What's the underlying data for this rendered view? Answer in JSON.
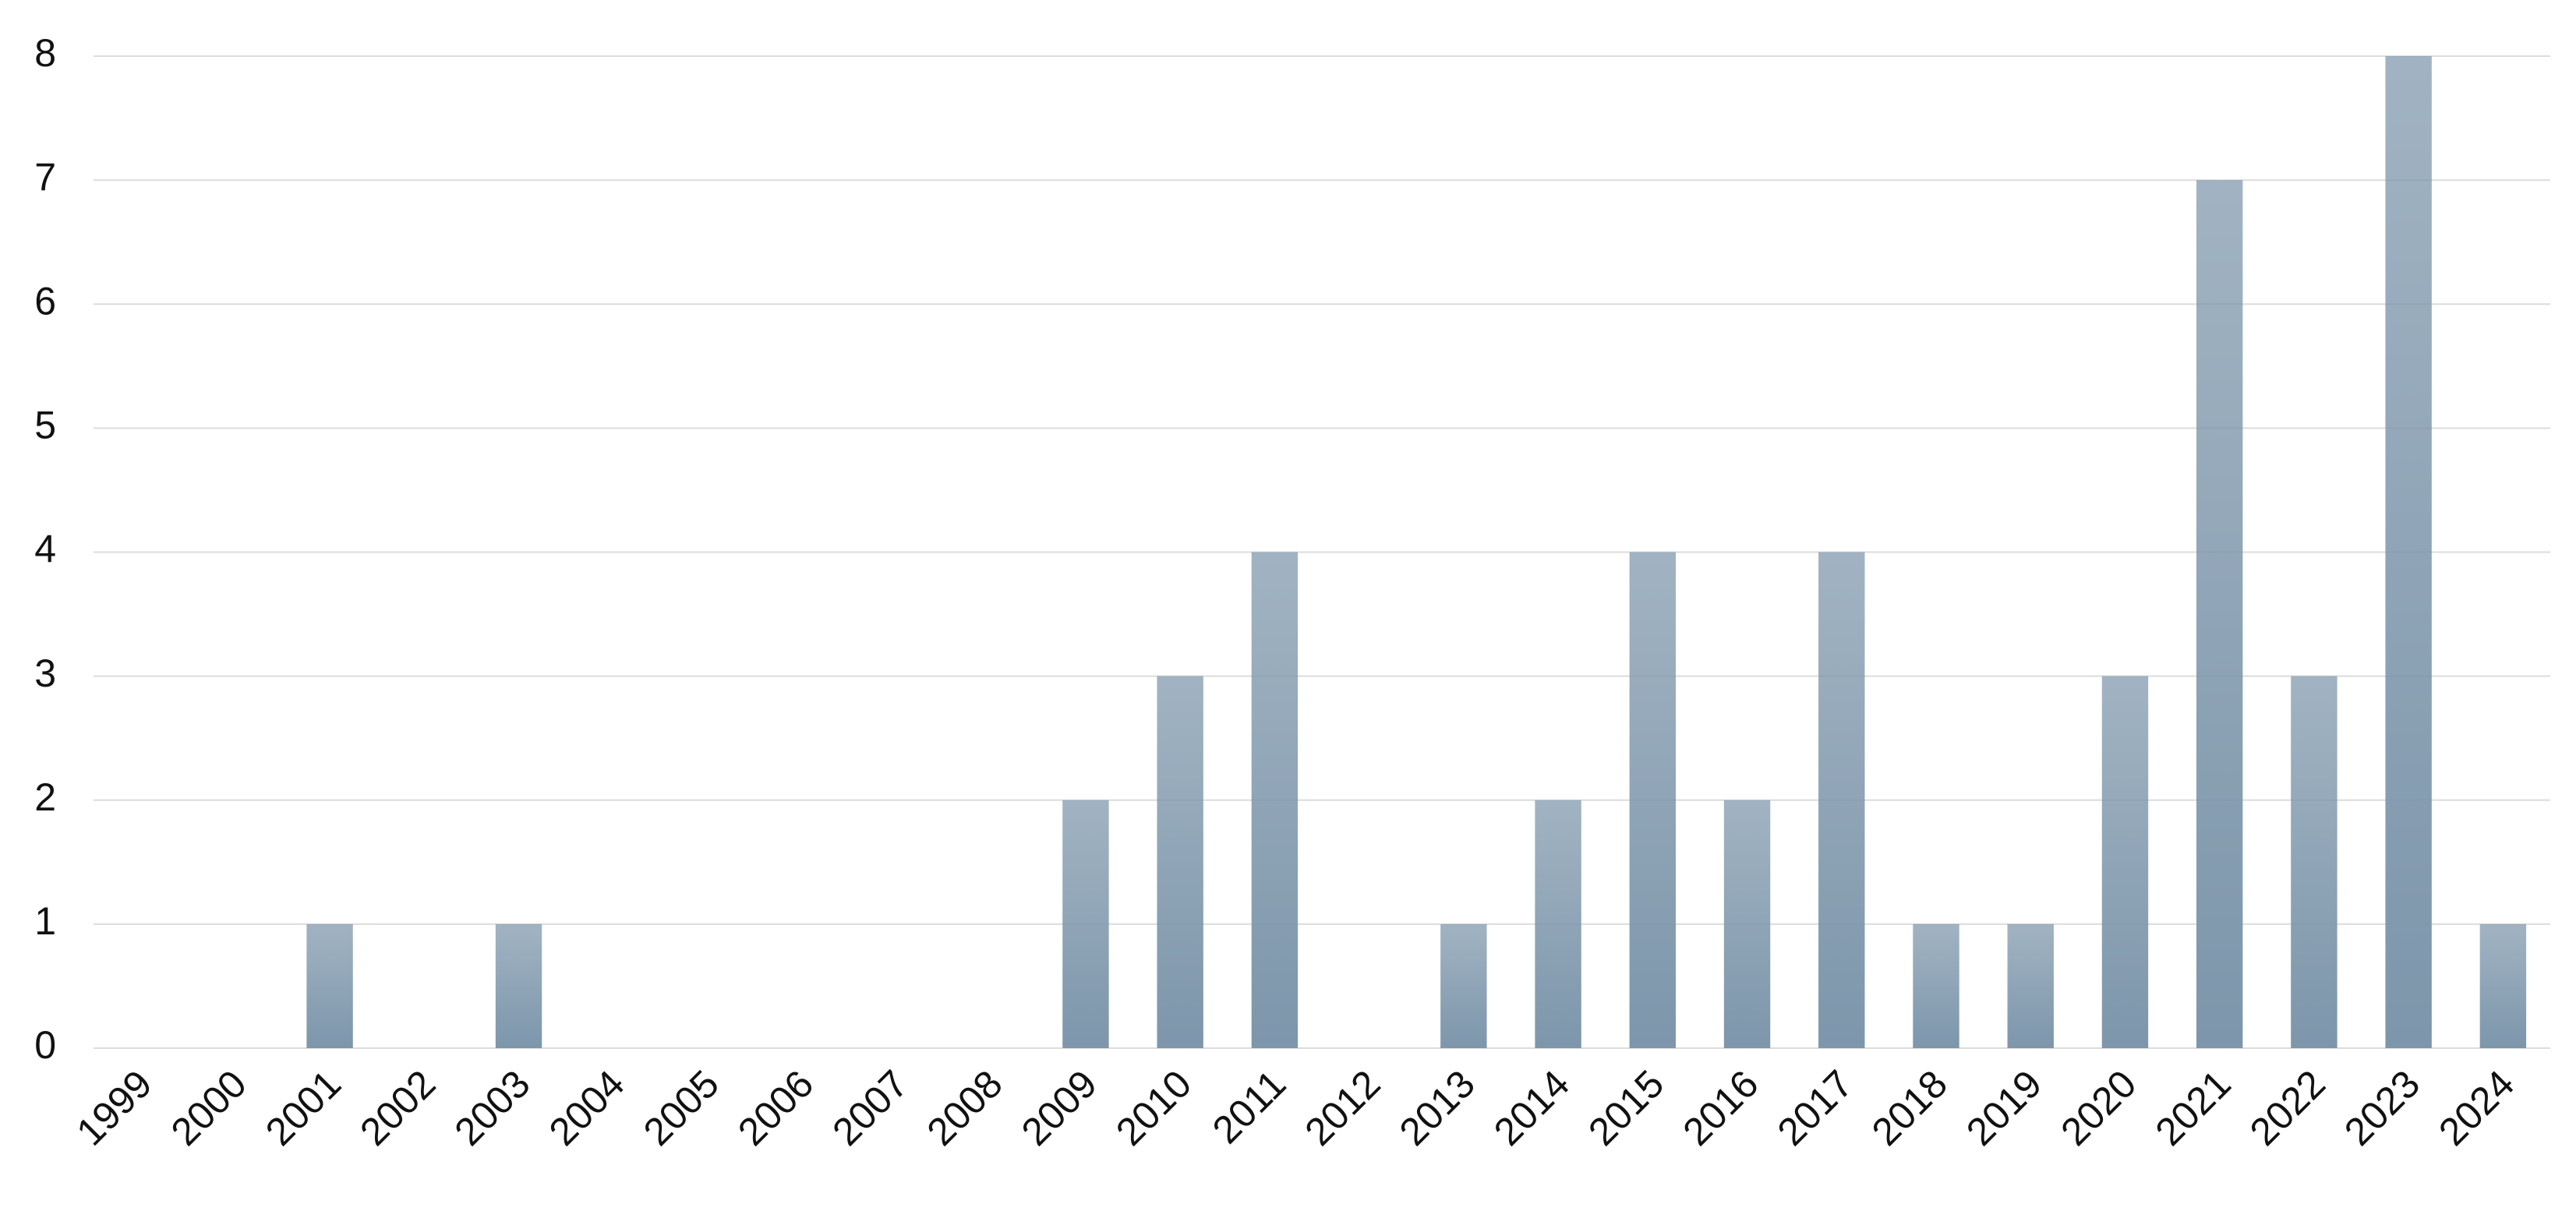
{
  "chart_data": {
    "type": "bar",
    "categories": [
      "1999",
      "2000",
      "2001",
      "2002",
      "2003",
      "2004",
      "2005",
      "2006",
      "2007",
      "2008",
      "2009",
      "2010",
      "2011",
      "2012",
      "2013",
      "2014",
      "2015",
      "2016",
      "2017",
      "2018",
      "2019",
      "2020",
      "2021",
      "2022",
      "2023",
      "2024"
    ],
    "values": [
      0,
      0,
      1,
      0,
      1,
      0,
      0,
      0,
      0,
      0,
      2,
      3,
      4,
      0,
      1,
      2,
      4,
      2,
      4,
      1,
      1,
      3,
      7,
      3,
      8,
      1
    ],
    "color": "#7d96ab",
    "ylim": [
      0,
      8
    ],
    "yticks": [
      0,
      1,
      2,
      3,
      4,
      5,
      6,
      7,
      8
    ],
    "grid": true
  }
}
